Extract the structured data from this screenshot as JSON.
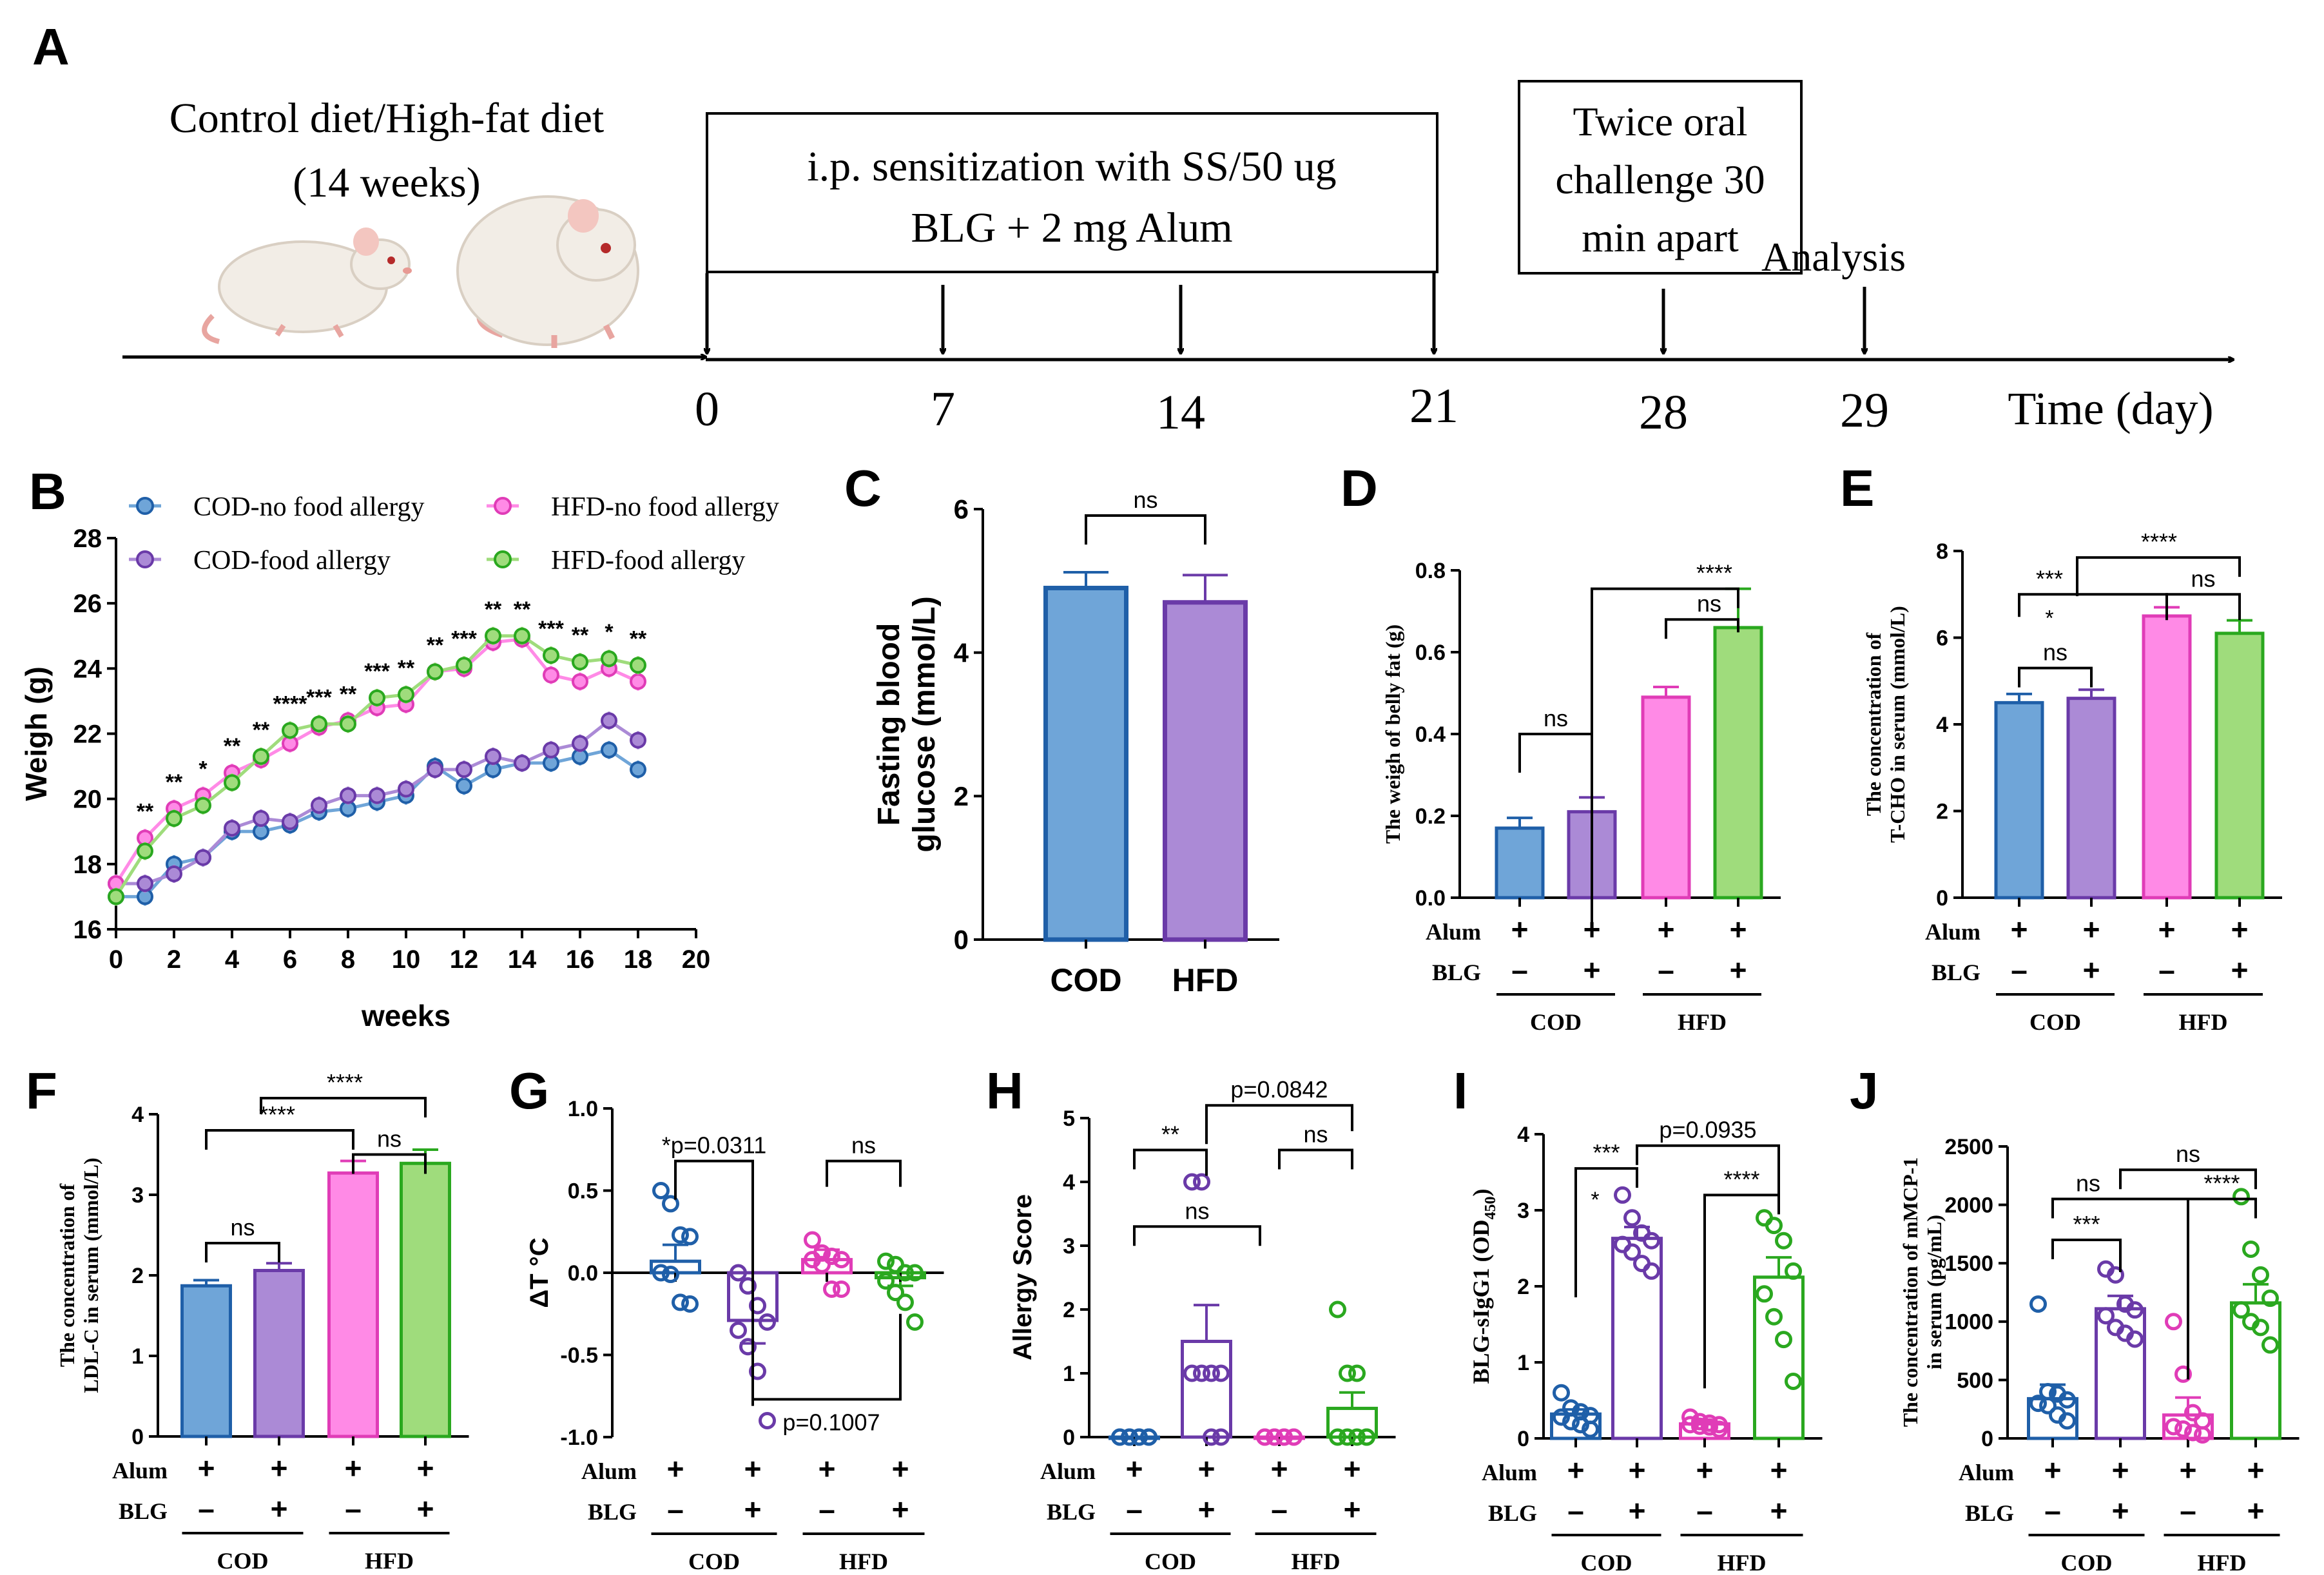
{
  "colors": {
    "cod": "#6fa5d8",
    "cod_edge": "#1f5fa8",
    "codfa": "#ab8ad6",
    "codfa_edge": "#6a3aa8",
    "hfd": "#ff8ae6",
    "hfd_edge": "#e03cb7",
    "hfdfa": "#9fdc7c",
    "hfdfa_edge": "#2aa81f"
  },
  "panels": {
    "A": "A",
    "B": "B",
    "C": "C",
    "D": "D",
    "E": "E",
    "F": "F",
    "G": "G",
    "H": "H",
    "I": "I",
    "J": "J"
  },
  "timeline": {
    "diet_line1": "Control diet/High-fat diet",
    "diet_line2": "(14 weeks)",
    "sens_line1": "i.p. sensitization with SS/50 ug",
    "sens_line2": "BLG + 2 mg Alum",
    "challenge_line1": "Twice oral",
    "challenge_line2": "challenge 30",
    "challenge_line3": "min apart",
    "analysis": "Analysis",
    "axis_label": "Time (day)",
    "days": [
      "0",
      "7",
      "14",
      "21",
      "28",
      "29"
    ]
  },
  "group_labels": {
    "alum": "Alum",
    "blg": "BLG",
    "plus": "+",
    "minus": "–",
    "cod": "COD",
    "hfd": "HFD"
  },
  "chart_data": [
    {
      "panel": "B",
      "type": "line",
      "xlabel": "weeks",
      "ylabel": "Weigh (g)",
      "xlim": [
        0,
        20
      ],
      "ylim": [
        16,
        28
      ],
      "xticks": [
        "0",
        "2",
        "4",
        "6",
        "8",
        "10",
        "12",
        "14",
        "16",
        "18",
        "20"
      ],
      "yticks": [
        "16",
        "18",
        "20",
        "22",
        "24",
        "26",
        "28"
      ],
      "x": [
        0,
        1,
        2,
        3,
        4,
        5,
        6,
        7,
        8,
        9,
        10,
        11,
        12,
        13,
        14,
        15,
        16,
        17,
        18
      ],
      "series": [
        {
          "name": "COD-no food allergy",
          "color": "cod",
          "values": [
            17.0,
            17.0,
            18.0,
            18.2,
            19.0,
            19.0,
            19.2,
            19.6,
            19.7,
            19.9,
            20.1,
            21.0,
            20.4,
            20.9,
            21.1,
            21.1,
            21.3,
            21.5,
            20.9
          ]
        },
        {
          "name": "COD-food allergy",
          "color": "codfa",
          "values": [
            17.4,
            17.4,
            17.7,
            18.2,
            19.1,
            19.4,
            19.3,
            19.8,
            20.1,
            20.1,
            20.3,
            20.9,
            20.9,
            21.3,
            21.1,
            21.5,
            21.7,
            22.4,
            21.8
          ]
        },
        {
          "name": "HFD-no food allergy",
          "color": "hfd",
          "values": [
            17.4,
            18.8,
            19.7,
            20.1,
            20.8,
            21.2,
            21.7,
            22.2,
            22.4,
            22.8,
            22.9,
            23.9,
            24.0,
            24.8,
            24.9,
            23.8,
            23.6,
            24.0,
            23.6
          ]
        },
        {
          "name": "HFD-food allergy",
          "color": "hfdfa",
          "values": [
            17.0,
            18.4,
            19.4,
            19.8,
            20.5,
            21.3,
            22.1,
            22.3,
            22.3,
            23.1,
            23.2,
            23.9,
            24.1,
            25.0,
            25.0,
            24.4,
            24.2,
            24.3,
            24.1
          ]
        }
      ],
      "significance": [
        "**",
        "**",
        "*",
        "**",
        "**",
        "****",
        "***",
        "**",
        "***",
        "**",
        "**",
        "***",
        "**",
        "**",
        "***",
        "**",
        "*",
        "**"
      ]
    },
    {
      "panel": "C",
      "type": "bar",
      "ylabel_line1": "Fasting blood",
      "ylabel_line2": "glucose (mmol/L)",
      "ylim": [
        0,
        6
      ],
      "yticks": [
        "0",
        "2",
        "4",
        "6"
      ],
      "categories": [
        "COD",
        "HFD"
      ],
      "values": [
        4.9,
        4.7
      ],
      "errors": [
        0.22,
        0.38
      ],
      "colors": [
        "cod",
        "codfa"
      ],
      "annotation": "ns"
    },
    {
      "panel": "D",
      "type": "bar",
      "ylabel": "The weigh of belly fat (g)",
      "ylim": [
        0,
        0.8
      ],
      "yticks": [
        "0.0",
        "0.2",
        "0.4",
        "0.6",
        "0.8"
      ],
      "values": [
        0.17,
        0.21,
        0.49,
        0.66
      ],
      "errors": [
        0.025,
        0.035,
        0.025,
        0.095
      ],
      "annotations": [
        "ns",
        "****",
        "ns"
      ]
    },
    {
      "panel": "E",
      "type": "bar",
      "ylabel_line1": "The concentration of",
      "ylabel_line2": "T-CHO in serum (mmol/L)",
      "ylim": [
        0,
        8
      ],
      "yticks": [
        "0",
        "2",
        "4",
        "6",
        "8"
      ],
      "values": [
        4.5,
        4.6,
        6.5,
        6.1
      ],
      "errors": [
        0.2,
        0.2,
        0.2,
        0.3
      ],
      "annotations": [
        "ns",
        "***",
        "*",
        "****",
        "ns"
      ]
    },
    {
      "panel": "F",
      "type": "bar",
      "ylabel_line1": "The concentration of",
      "ylabel_line2": "LDL-C in serum (mmol/L)",
      "ylim": [
        0,
        4
      ],
      "yticks": [
        "0",
        "1",
        "2",
        "3",
        "4"
      ],
      "values": [
        1.87,
        2.06,
        3.27,
        3.39
      ],
      "errors": [
        0.07,
        0.09,
        0.15,
        0.17
      ],
      "annotations": [
        "ns",
        "****",
        "ns",
        "****"
      ]
    },
    {
      "panel": "G",
      "type": "bar_scatter",
      "ylabel": "ΔT °C",
      "ylim": [
        -1.0,
        1.0
      ],
      "yticks": [
        "-1.0",
        "-0.5",
        "0.0",
        "0.5",
        "1.0"
      ],
      "values": [
        0.07,
        -0.29,
        0.08,
        -0.03
      ],
      "errors": [
        0.1,
        0.14,
        0.06,
        0.05
      ],
      "points": [
        [
          0.5,
          0.42,
          0.23,
          0.22,
          0.0,
          -0.01,
          -0.18,
          -0.19
        ],
        [
          0.0,
          -0.08,
          -0.2,
          -0.3,
          -0.35,
          -0.45,
          -0.6,
          -0.9
        ],
        [
          0.2,
          0.12,
          0.1,
          0.08,
          0.08,
          0.05,
          -0.1,
          -0.1
        ],
        [
          0.07,
          0.05,
          0.0,
          0.0,
          -0.05,
          -0.12,
          -0.18,
          -0.3
        ]
      ],
      "annotations": [
        "*p=0.0311",
        "ns",
        "p=0.1007"
      ]
    },
    {
      "panel": "H",
      "type": "bar_scatter",
      "ylabel": "Allergy Score",
      "ylim": [
        0,
        5
      ],
      "yticks": [
        "0",
        "1",
        "2",
        "3",
        "4",
        "5"
      ],
      "values": [
        0.0,
        1.5,
        0.0,
        0.45
      ],
      "errors": [
        0.0,
        0.57,
        0.0,
        0.25
      ],
      "points": [
        [
          0,
          0,
          0,
          0,
          0,
          0,
          0,
          0
        ],
        [
          4,
          4,
          1,
          1,
          1,
          1,
          0,
          0
        ],
        [
          0,
          0,
          0,
          0,
          0,
          0,
          0,
          0
        ],
        [
          2,
          1,
          1,
          0,
          0,
          0,
          0,
          0
        ]
      ],
      "annotations": [
        "**",
        "ns",
        "p=0.0842",
        "ns"
      ]
    },
    {
      "panel": "I",
      "type": "bar_scatter",
      "ylabel": "BLG-sIgG1 (OD",
      "ylabel_sub": "450",
      "ylabel_end": ")",
      "ylim": [
        0,
        4
      ],
      "yticks": [
        "0",
        "1",
        "2",
        "3",
        "4"
      ],
      "values": [
        0.32,
        2.63,
        0.19,
        2.12
      ],
      "errors": [
        0.06,
        0.15,
        0.03,
        0.26
      ],
      "points": [
        [
          0.6,
          0.4,
          0.35,
          0.3,
          0.28,
          0.22,
          0.18,
          0.12
        ],
        [
          3.2,
          2.9,
          2.7,
          2.6,
          2.55,
          2.45,
          2.3,
          2.2
        ],
        [
          0.28,
          0.22,
          0.2,
          0.18,
          0.18,
          0.16,
          0.15,
          0.12
        ],
        [
          2.9,
          2.8,
          2.6,
          2.2,
          1.9,
          1.6,
          1.3,
          0.75
        ]
      ],
      "annotations": [
        "***",
        "*",
        "p=0.0935",
        "****"
      ]
    },
    {
      "panel": "J",
      "type": "bar_scatter",
      "ylabel_line1": "The concentration of mMCP-1",
      "ylabel_line2": "in serum (pg/mL)",
      "ylim": [
        0,
        2500
      ],
      "yticks": [
        "0",
        "500",
        "1000",
        "1500",
        "2000",
        "2500"
      ],
      "values": [
        340,
        1110,
        200,
        1160
      ],
      "errors": [
        120,
        110,
        150,
        160
      ],
      "points": [
        [
          1150,
          400,
          380,
          330,
          300,
          280,
          200,
          150
        ],
        [
          1450,
          1400,
          1150,
          1100,
          1050,
          950,
          900,
          850
        ],
        [
          1000,
          550,
          220,
          150,
          100,
          80,
          50,
          30
        ],
        [
          2070,
          1620,
          1400,
          1200,
          1100,
          1000,
          950,
          800
        ]
      ],
      "annotations": [
        "***",
        "ns",
        "ns",
        "****"
      ]
    }
  ]
}
